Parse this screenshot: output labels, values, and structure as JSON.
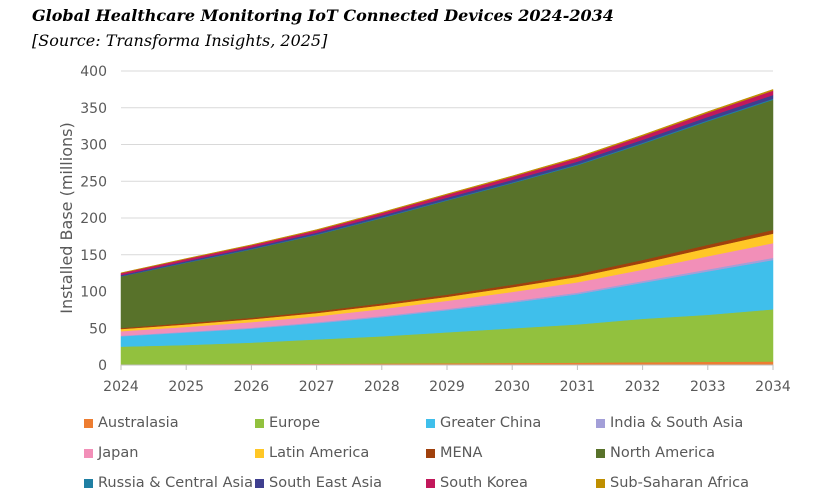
{
  "chart_data": {
    "type": "area",
    "stacked": true,
    "title": "Global Healthcare Monitoring IoT Connected Devices 2024-2034",
    "subtitle": "[Source: Transforma Insights, 2025]",
    "xlabel": "",
    "ylabel": "Installed Base (millions)",
    "x": [
      "2024",
      "2025",
      "2026",
      "2027",
      "2028",
      "2029",
      "2030",
      "2031",
      "2032",
      "2033",
      "2034"
    ],
    "ylim": [
      0,
      400
    ],
    "yticks": [
      0,
      50,
      100,
      150,
      200,
      250,
      300,
      350,
      400
    ],
    "grid": true,
    "legend_position": "bottom",
    "series": [
      {
        "name": "Australasia",
        "color": "#ed7d31",
        "values": [
          1.0,
          1.2,
          1.5,
          1.8,
          2.1,
          2.5,
          2.9,
          3.3,
          3.8,
          4.3,
          4.8
        ]
      },
      {
        "name": "Europe",
        "color": "#92c13e",
        "values": [
          24,
          26,
          29,
          33,
          37,
          42,
          47,
          52,
          59,
          64,
          71
        ]
      },
      {
        "name": "Greater China",
        "color": "#3fbfeb",
        "values": [
          14,
          17,
          19,
          22,
          26,
          30,
          35,
          41,
          49,
          59,
          67
        ]
      },
      {
        "name": "India & South Asia",
        "color": "#a39fd8",
        "values": [
          1.0,
          1.1,
          1.3,
          1.4,
          1.6,
          1.8,
          2.0,
          2.2,
          2.5,
          2.7,
          3.0
        ]
      },
      {
        "name": "Japan",
        "color": "#f28fb8",
        "values": [
          6,
          6.5,
          7.5,
          8,
          9.5,
          11,
          12.5,
          14,
          15.5,
          18,
          20
        ]
      },
      {
        "name": "Latin America",
        "color": "#ffc726",
        "values": [
          3.0,
          3.5,
          4.0,
          4.5,
          5.0,
          5.5,
          6.5,
          7.5,
          9.0,
          11,
          13
        ]
      },
      {
        "name": "MENA",
        "color": "#a0410d",
        "values": [
          1.5,
          1.8,
          2.0,
          2.3,
          2.7,
          3.0,
          3.4,
          3.8,
          4.2,
          4.6,
          5.0
        ]
      },
      {
        "name": "North America",
        "color": "#58722a",
        "values": [
          70,
          82,
          93,
          104,
          116,
          128,
          138,
          148,
          158,
          168,
          177
        ]
      },
      {
        "name": "Russia & Central Asia",
        "color": "#1f7fa3",
        "values": [
          0.5,
          0.6,
          0.7,
          0.8,
          0.9,
          1.0,
          1.1,
          1.2,
          1.3,
          1.4,
          1.5
        ]
      },
      {
        "name": "South East Asia",
        "color": "#3f3f8f",
        "values": [
          1.5,
          1.8,
          2.0,
          2.3,
          2.6,
          3.0,
          3.4,
          3.8,
          4.2,
          4.6,
          5.0
        ]
      },
      {
        "name": "South Korea",
        "color": "#c2185b",
        "values": [
          2.5,
          2.8,
          3.0,
          3.3,
          3.6,
          4.0,
          4.4,
          4.8,
          5.2,
          5.6,
          6.0
        ]
      },
      {
        "name": "Sub-Saharan Africa",
        "color": "#bf8f00",
        "values": [
          0.5,
          0.6,
          0.7,
          0.8,
          0.9,
          1.0,
          1.1,
          1.2,
          1.3,
          1.5,
          1.6
        ]
      }
    ]
  }
}
